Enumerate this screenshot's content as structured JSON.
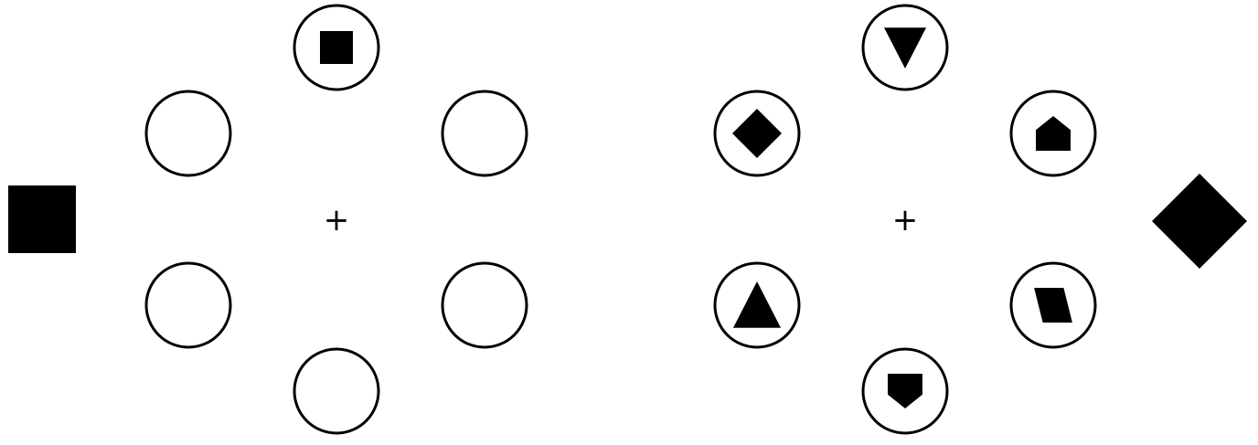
{
  "colors": {
    "background": "#ffffff",
    "ink": "#000000"
  },
  "displays": [
    {
      "id": "left-array",
      "fixation_label": "+",
      "slots": [
        {
          "position": "top",
          "shape": "square"
        },
        {
          "position": "upper-right",
          "shape": "none"
        },
        {
          "position": "lower-right",
          "shape": "none"
        },
        {
          "position": "bottom",
          "shape": "none"
        },
        {
          "position": "lower-left",
          "shape": "none"
        },
        {
          "position": "upper-left",
          "shape": "none"
        }
      ],
      "probe": {
        "side": "left",
        "shape": "square"
      }
    },
    {
      "id": "right-array",
      "fixation_label": "+",
      "slots": [
        {
          "position": "top",
          "shape": "triangle-down"
        },
        {
          "position": "upper-right",
          "shape": "house"
        },
        {
          "position": "lower-right",
          "shape": "parallelogram"
        },
        {
          "position": "bottom",
          "shape": "house-inverted"
        },
        {
          "position": "lower-left",
          "shape": "triangle-up"
        },
        {
          "position": "upper-left",
          "shape": "diamond"
        }
      ],
      "probe": {
        "side": "right",
        "shape": "diamond"
      }
    }
  ]
}
